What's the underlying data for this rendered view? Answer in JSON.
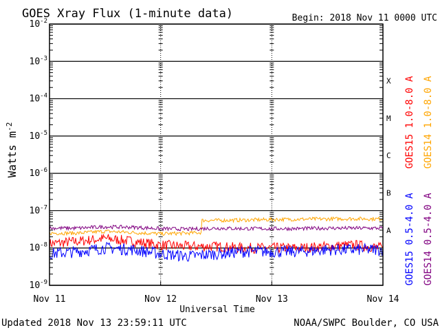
{
  "header": {
    "title": "GOES Xray Flux (1-minute data)",
    "begin": "Begin:  2018 Nov 11 0000 UTC"
  },
  "footer": {
    "updated": "Updated 2018 Nov 13 23:59:11 UTC",
    "credit": "NOAA/SWPC Boulder, CO USA"
  },
  "colors": {
    "goes15_long": "#ff0000",
    "goes14_long": "#ffa500",
    "goes15_short": "#0000ff",
    "goes14_short": "#800080"
  },
  "chart_data": {
    "type": "line",
    "title": "GOES Xray Flux (1-minute data)",
    "xlabel": "Universal Time",
    "ylabel": "Watts m",
    "ylabel_exponent": "-2",
    "yscale": "log",
    "ylim": [
      1e-09,
      0.01
    ],
    "xlim": [
      "2018-11-11 00:00",
      "2018-11-14 00:00"
    ],
    "x_ticks": [
      "Nov 11",
      "Nov 12",
      "Nov 13",
      "Nov 14"
    ],
    "y_ticks": [
      {
        "base": "10",
        "exp": "-2",
        "value": 0.01
      },
      {
        "base": "10",
        "exp": "-3",
        "value": 0.001
      },
      {
        "base": "10",
        "exp": "-4",
        "value": 0.0001
      },
      {
        "base": "10",
        "exp": "-5",
        "value": 1e-05
      },
      {
        "base": "10",
        "exp": "-6",
        "value": 1e-06
      },
      {
        "base": "10",
        "exp": "-7",
        "value": 1e-07
      },
      {
        "base": "10",
        "exp": "-8",
        "value": 1e-08
      },
      {
        "base": "10",
        "exp": "-9",
        "value": 1e-09
      }
    ],
    "flare_classes": [
      {
        "label": "X",
        "value": 0.0001
      },
      {
        "label": "M",
        "value": 1e-05
      },
      {
        "label": "C",
        "value": 1e-06
      },
      {
        "label": "B",
        "value": 1e-07
      },
      {
        "label": "A",
        "value": 1e-08
      }
    ],
    "grid": "horizontal",
    "legend": "right",
    "series": [
      {
        "name": "GOES15 1.0-8.0 A",
        "color": "#ff0000",
        "x": [
          "2018-11-11 00:00",
          "2018-11-11 06:00",
          "2018-11-11 12:00",
          "2018-11-11 18:00",
          "2018-11-12 00:00",
          "2018-11-12 06:00",
          "2018-11-12 12:00",
          "2018-11-12 18:00",
          "2018-11-13 00:00",
          "2018-11-13 06:00",
          "2018-11-13 12:00",
          "2018-11-13 18:00",
          "2018-11-14 00:00"
        ],
        "y": [
          1.3e-08,
          1.5e-08,
          1.8e-08,
          1.5e-08,
          1.2e-08,
          1.1e-08,
          1.1e-08,
          1e-08,
          1e-08,
          1e-08,
          1.1e-08,
          1.2e-08,
          1e-08
        ]
      },
      {
        "name": "GOES14 1.0-8.0 A",
        "color": "#ffa500",
        "x": [
          "2018-11-11 00:00",
          "2018-11-11 06:00",
          "2018-11-11 12:00",
          "2018-11-11 18:00",
          "2018-11-12 00:00",
          "2018-11-12 06:00",
          "2018-11-12 08:45",
          "2018-11-12 12:00",
          "2018-11-12 18:00",
          "2018-11-13 00:00",
          "2018-11-13 06:00",
          "2018-11-13 12:00",
          "2018-11-13 18:00",
          "2018-11-14 00:00"
        ],
        "y": [
          2.5e-08,
          2.5e-08,
          2.8e-08,
          2.6e-08,
          2.4e-08,
          2.5e-08,
          2.6e-08,
          5.5e-08,
          5.6e-08,
          5.8e-08,
          5.9e-08,
          6e-08,
          6.1e-08,
          6e-08
        ]
      },
      {
        "name": "GOES15 0.5-4.0 A",
        "color": "#0000ff",
        "x": [
          "2018-11-11 00:00",
          "2018-11-11 06:00",
          "2018-11-11 12:00",
          "2018-11-11 18:00",
          "2018-11-12 00:00",
          "2018-11-12 06:00",
          "2018-11-12 12:00",
          "2018-11-12 18:00",
          "2018-11-13 00:00",
          "2018-11-13 06:00",
          "2018-11-13 12:00",
          "2018-11-13 18:00",
          "2018-11-14 00:00"
        ],
        "y": [
          7e-09,
          8e-09,
          1e-08,
          9e-09,
          7e-09,
          6e-09,
          7e-09,
          8e-09,
          8e-09,
          8e-09,
          9e-09,
          9e-09,
          9e-09
        ]
      },
      {
        "name": "GOES14 0.5-4.0 A",
        "color": "#800080",
        "x": [
          "2018-11-11 00:00",
          "2018-11-11 06:00",
          "2018-11-11 12:00",
          "2018-11-11 18:00",
          "2018-11-12 00:00",
          "2018-11-12 06:00",
          "2018-11-12 12:00",
          "2018-11-12 18:00",
          "2018-11-13 00:00",
          "2018-11-13 06:00",
          "2018-11-13 12:00",
          "2018-11-13 18:00",
          "2018-11-14 00:00"
        ],
        "y": [
          3.4e-08,
          3.4e-08,
          3.7e-08,
          3.6e-08,
          3.3e-08,
          3.2e-08,
          3.4e-08,
          3.3e-08,
          3.3e-08,
          3.3e-08,
          3.4e-08,
          3.4e-08,
          3.4e-08
        ]
      }
    ]
  }
}
